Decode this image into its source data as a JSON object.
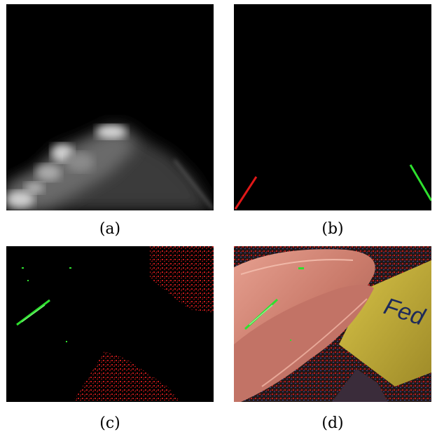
{
  "figure": {
    "panels": [
      {
        "id": "a",
        "caption": "(a)"
      },
      {
        "id": "b",
        "caption": "(b)"
      },
      {
        "id": "c",
        "caption": "(c)"
      },
      {
        "id": "d",
        "caption": "(d)"
      }
    ],
    "photo_text": "Fed"
  },
  "colors": {
    "background": "#000000",
    "red_line": "#e01818",
    "green_line": "#2ee02e",
    "red_speckle": "#c01a1a",
    "float_pink": "#c97a6a",
    "yellow_sleeve": "#c9b43a",
    "sleeve_text": "#1e2a5a"
  }
}
